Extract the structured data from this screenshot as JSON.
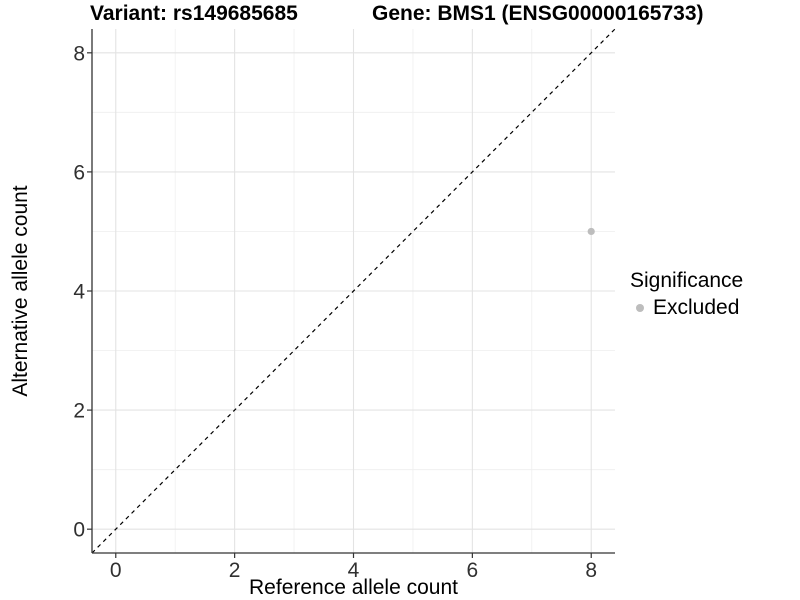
{
  "chart_data": {
    "type": "scatter",
    "titles": {
      "variant": "Variant: rs149685685",
      "gene": "Gene: BMS1 (ENSG00000165733)"
    },
    "xlabel": "Reference allele count",
    "ylabel": "Alternative allele count",
    "xlim": [
      -0.4,
      8.4
    ],
    "ylim": [
      -0.4,
      8.4
    ],
    "xticks": [
      0,
      2,
      4,
      6,
      8
    ],
    "yticks": [
      0,
      2,
      4,
      6,
      8
    ],
    "minor_gridlines": [
      1,
      3,
      5,
      7
    ],
    "grid": "on",
    "identity_line": {
      "slope": 1,
      "intercept": 0,
      "style": "dashed",
      "color": "#000000"
    },
    "series": [
      {
        "name": "Excluded",
        "marker": "circle",
        "color": "#bdbdbd",
        "points": [
          {
            "x": 8,
            "y": 5
          }
        ]
      }
    ],
    "legend": {
      "title": "Significance",
      "position": "right",
      "entries": [
        {
          "label": "Excluded",
          "color": "#bdbdbd",
          "marker": "circle"
        }
      ]
    },
    "colors": {
      "grid_major": "#e3e3e3",
      "grid_minor": "#f0f0f0",
      "axis_line": "#333333",
      "tick_mark": "#333333",
      "tick_label": "#303030",
      "background": "#ffffff"
    }
  }
}
